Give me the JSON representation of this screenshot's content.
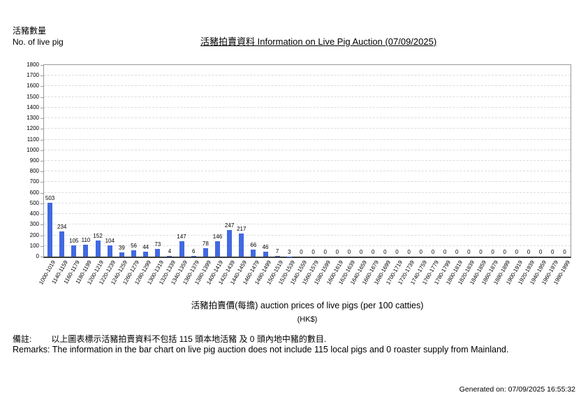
{
  "header": {
    "y_axis_label_zh": "活豬數量",
    "y_axis_label_en": "No. of live pig",
    "title": "活豬拍賣資料 Information on Live Pig Auction (07/09/2025)"
  },
  "chart_data": {
    "type": "bar",
    "title": "活豬拍賣資料 Information on Live Pig Auction (07/09/2025)",
    "xlabel": "活豬拍賣價(每擔) auction prices of live pigs (per 100 catties)",
    "xlabel_unit": "(HK$)",
    "ylabel_zh": "活豬數量",
    "ylabel_en": "No. of live pig",
    "ylim": [
      0,
      1800
    ],
    "ytick_step": 100,
    "yticks": [
      0,
      100,
      200,
      300,
      400,
      500,
      600,
      700,
      800,
      900,
      1000,
      1100,
      1200,
      1300,
      1400,
      1500,
      1600,
      1700,
      1800
    ],
    "grid": true,
    "legend": false,
    "bar_color": "#4169E1",
    "categories": [
      "1000-1019",
      "1140-1159",
      "1160-1179",
      "1180-1199",
      "1200-1219",
      "1220-1239",
      "1240-1259",
      "1260-1279",
      "1280-1299",
      "1300-1319",
      "1320-1339",
      "1340-1359",
      "1360-1379",
      "1380-1399",
      "1400-1419",
      "1420-1439",
      "1440-1459",
      "1460-1479",
      "1480-1499",
      "1500-1519",
      "1520-1539",
      "1540-1559",
      "1560-1579",
      "1580-1599",
      "1600-1619",
      "1620-1639",
      "1640-1659",
      "1660-1679",
      "1680-1699",
      "1700-1719",
      "1720-1739",
      "1740-1759",
      "1760-1779",
      "1780-1799",
      "1800-1819",
      "1820-1839",
      "1840-1859",
      "1860-1879",
      "1880-1899",
      "1900-1919",
      "1920-1939",
      "1940-1959",
      "1960-1979",
      "1980-1999"
    ],
    "values": [
      503,
      234,
      105,
      110,
      152,
      104,
      39,
      56,
      44,
      73,
      4,
      147,
      6,
      78,
      146,
      247,
      217,
      66,
      46,
      7,
      3,
      0,
      0,
      0,
      0,
      0,
      0,
      0,
      0,
      0,
      0,
      0,
      0,
      0,
      0,
      0,
      0,
      0,
      0,
      0,
      0,
      0,
      0,
      0
    ]
  },
  "footer": {
    "remarks_zh_label": "備註:",
    "remarks_zh_text": "以上圖表標示活豬拍賣資料不包括 115 頭本地活豬 及 0 頭內地中豬的數目.",
    "remarks_en": "Remarks: The information in the bar chart on live pig auction does not include 115 local pigs and 0 roaster supply from Mainland.",
    "generated": "Generated on: 07/09/2025 16:55:32"
  }
}
